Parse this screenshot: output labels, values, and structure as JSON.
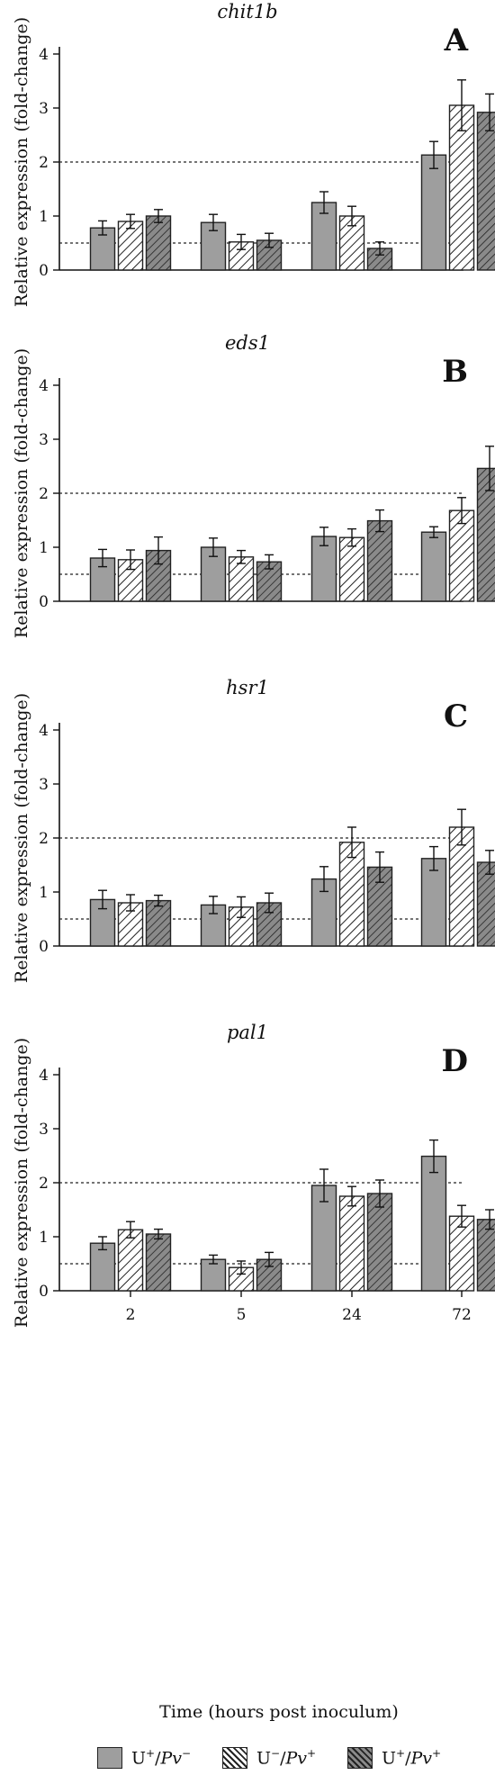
{
  "figure": {
    "xlabel": "Time (hours post inoculum)",
    "legend": [
      {
        "key": "s1",
        "prefix": "U",
        "prefix_sup": "+",
        "sep": "/",
        "suffix": "Pv",
        "suffix_sup": "−",
        "fill": "#9e9e9e",
        "pattern": "solid"
      },
      {
        "key": "s2",
        "prefix": "U",
        "prefix_sup": "−",
        "sep": "/",
        "suffix": "Pv",
        "suffix_sup": "+",
        "fill": "#ffffff",
        "pattern": "hatch"
      },
      {
        "key": "s3",
        "prefix": "U",
        "prefix_sup": "+",
        "sep": "/",
        "suffix": "Pv",
        "suffix_sup": "+",
        "fill": "#8a8a8a",
        "pattern": "hatch-dark"
      }
    ],
    "colors": {
      "bar_solid": "#9e9e9e",
      "bar_dark": "#8a8a8a",
      "hatch_line": "#222222",
      "axis": "#111111"
    }
  },
  "chart_data": [
    {
      "type": "bar",
      "title": "chit1b",
      "panel_label": "A",
      "ylabel": "Relative expression (fold-change)",
      "categories": [
        "2",
        "5",
        "24",
        "72"
      ],
      "yticks": [
        0,
        1,
        2,
        3,
        4
      ],
      "ylim": [
        0,
        4
      ],
      "reference_lines": [
        0.5,
        2
      ],
      "series": [
        {
          "key": "s1",
          "values": [
            0.78,
            0.88,
            1.25,
            2.13
          ],
          "errors": [
            0.13,
            0.15,
            0.2,
            0.25
          ]
        },
        {
          "key": "s2",
          "values": [
            0.9,
            0.52,
            1.0,
            3.05
          ],
          "errors": [
            0.13,
            0.14,
            0.18,
            0.47
          ]
        },
        {
          "key": "s3",
          "values": [
            1.0,
            0.55,
            0.4,
            2.92
          ],
          "errors": [
            0.12,
            0.13,
            0.12,
            0.34
          ]
        }
      ]
    },
    {
      "type": "bar",
      "title": "eds1",
      "panel_label": "B",
      "ylabel": "Relative expression (fold-change)",
      "categories": [
        "2",
        "5",
        "24",
        "72"
      ],
      "yticks": [
        0,
        1,
        2,
        3,
        4
      ],
      "ylim": [
        0,
        4
      ],
      "reference_lines": [
        0.5,
        2
      ],
      "series": [
        {
          "key": "s1",
          "values": [
            0.8,
            1.0,
            1.2,
            1.28
          ],
          "errors": [
            0.16,
            0.17,
            0.17,
            0.1
          ]
        },
        {
          "key": "s2",
          "values": [
            0.77,
            0.82,
            1.18,
            1.68
          ],
          "errors": [
            0.18,
            0.12,
            0.16,
            0.24
          ]
        },
        {
          "key": "s3",
          "values": [
            0.94,
            0.73,
            1.49,
            2.46
          ],
          "errors": [
            0.25,
            0.13,
            0.2,
            0.41
          ]
        }
      ]
    },
    {
      "type": "bar",
      "title": "hsr1",
      "panel_label": "C",
      "ylabel": "Relative expression (fold-change)",
      "categories": [
        "2",
        "5",
        "24",
        "72"
      ],
      "yticks": [
        0,
        1,
        2,
        3,
        4
      ],
      "ylim": [
        0,
        4
      ],
      "reference_lines": [
        0.5,
        2
      ],
      "series": [
        {
          "key": "s1",
          "values": [
            0.86,
            0.76,
            1.24,
            1.62
          ],
          "errors": [
            0.17,
            0.16,
            0.23,
            0.22
          ]
        },
        {
          "key": "s2",
          "values": [
            0.8,
            0.72,
            1.92,
            2.2
          ],
          "errors": [
            0.15,
            0.19,
            0.28,
            0.33
          ]
        },
        {
          "key": "s3",
          "values": [
            0.84,
            0.8,
            1.46,
            1.55
          ],
          "errors": [
            0.1,
            0.18,
            0.28,
            0.22
          ]
        }
      ]
    },
    {
      "type": "bar",
      "title": "pal1",
      "panel_label": "D",
      "ylabel": "Relative expression (fold-change)",
      "categories": [
        "2",
        "5",
        "24",
        "72"
      ],
      "yticks": [
        0,
        1,
        2,
        3,
        4
      ],
      "ylim": [
        0,
        4
      ],
      "reference_lines": [
        0.5,
        2
      ],
      "series": [
        {
          "key": "s1",
          "values": [
            0.88,
            0.58,
            1.95,
            2.49
          ],
          "errors": [
            0.12,
            0.08,
            0.3,
            0.3
          ]
        },
        {
          "key": "s2",
          "values": [
            1.13,
            0.43,
            1.75,
            1.38
          ],
          "errors": [
            0.15,
            0.12,
            0.18,
            0.2
          ]
        },
        {
          "key": "s3",
          "values": [
            1.05,
            0.58,
            1.8,
            1.32
          ],
          "errors": [
            0.09,
            0.13,
            0.25,
            0.18
          ]
        }
      ]
    }
  ]
}
